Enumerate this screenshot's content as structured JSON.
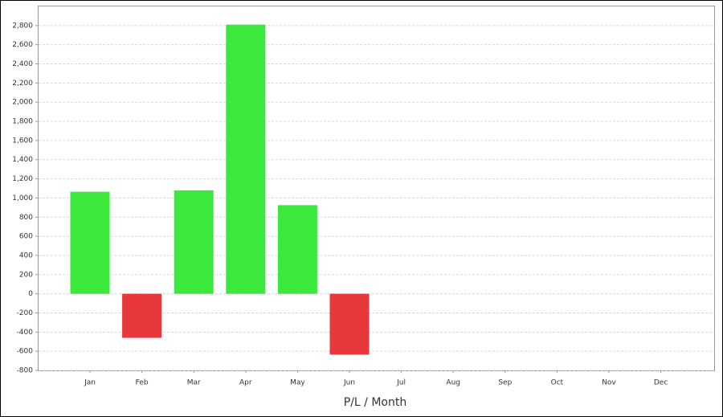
{
  "chart_data": {
    "type": "bar",
    "x_label": "P/L / Month",
    "categories": [
      "Jan",
      "Feb",
      "Mar",
      "Apr",
      "May",
      "Jun",
      "Jul",
      "Aug",
      "Sep",
      "Oct",
      "Nov",
      "Dec"
    ],
    "values": [
      1065,
      -460,
      1080,
      2810,
      925,
      -635,
      null,
      null,
      null,
      null,
      null,
      null
    ],
    "positive_color": "#3de83d",
    "negative_color": "#e8383d",
    "ylim": [
      -800,
      3000
    ],
    "yticks": [
      -800,
      -600,
      -400,
      -200,
      0,
      200,
      400,
      600,
      800,
      {
        "value": 1000,
        "label": "1,000"
      },
      {
        "value": 1200,
        "label": "1,200"
      },
      {
        "value": 1400,
        "label": "1,400"
      },
      {
        "value": 1600,
        "label": "1,600"
      },
      {
        "value": 1800,
        "label": "1,800"
      },
      {
        "value": 2000,
        "label": "2,000"
      },
      {
        "value": 2200,
        "label": "2,200"
      },
      {
        "value": 2400,
        "label": "2,400"
      },
      {
        "value": 2600,
        "label": "2,600"
      },
      {
        "value": 2800,
        "label": "2,800"
      }
    ],
    "grid": true
  }
}
